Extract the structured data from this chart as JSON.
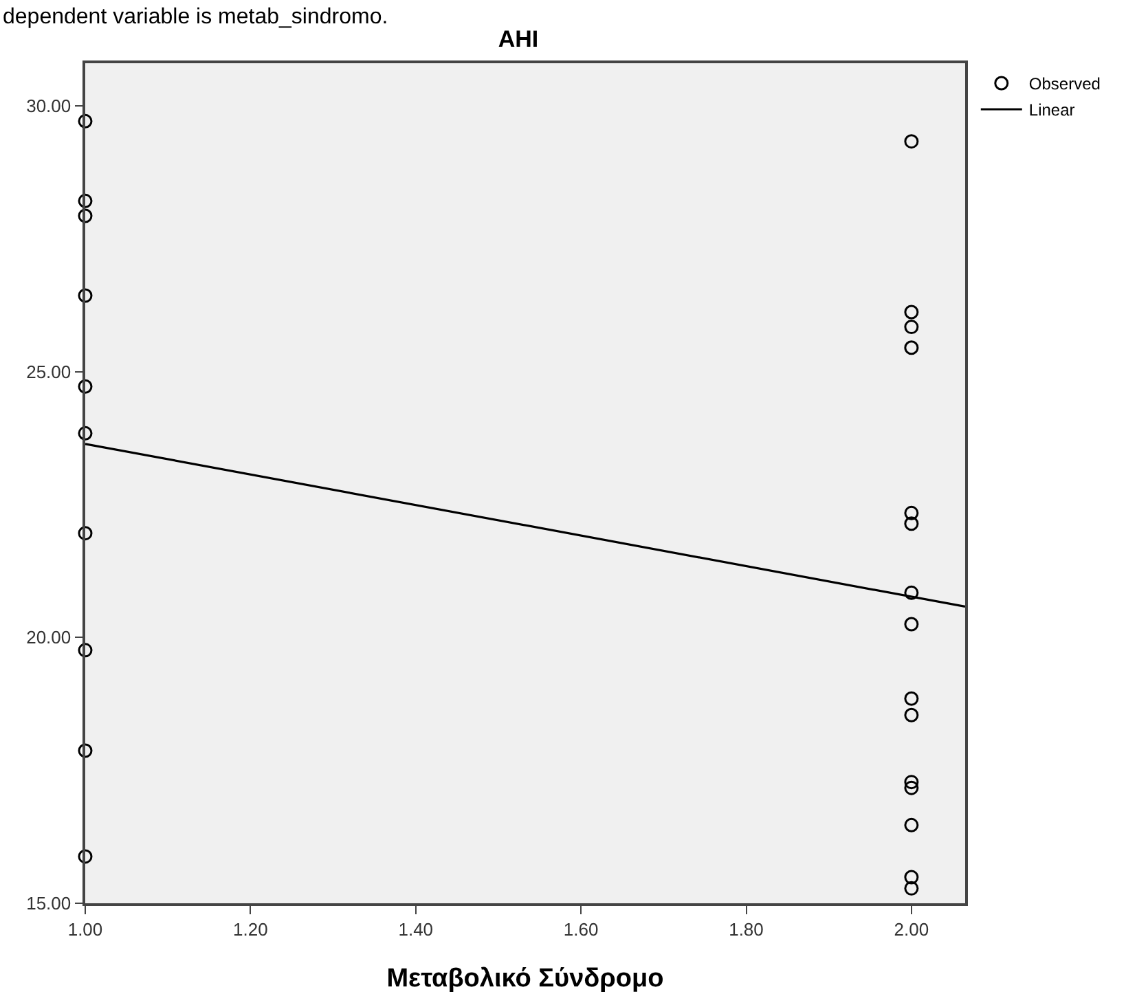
{
  "chart_data": {
    "type": "scatter",
    "title": "AHI",
    "xlabel": "Μεταβολικό Σύνδρομο",
    "annotations": [
      "dependent variable is metab_sindromo."
    ],
    "xlim": [
      1.0,
      2.065
    ],
    "ylim": [
      15.0,
      30.8
    ],
    "xticks": [
      {
        "value": 1.0,
        "label": "1.00"
      },
      {
        "value": 1.2,
        "label": "1.20"
      },
      {
        "value": 1.4,
        "label": "1.40"
      },
      {
        "value": 1.6,
        "label": "1.60"
      },
      {
        "value": 1.8,
        "label": "1.80"
      },
      {
        "value": 2.0,
        "label": "2.00"
      }
    ],
    "yticks": [
      {
        "value": 15,
        "label": "15.00"
      },
      {
        "value": 20,
        "label": "20.00"
      },
      {
        "value": 25,
        "label": "25.00"
      },
      {
        "value": 30,
        "label": "30.00"
      }
    ],
    "grid": false,
    "legend": "top right",
    "series": [
      {
        "name": "Observed",
        "type": "scatter",
        "color": "#000000",
        "marker": "circle",
        "x": [
          1,
          1,
          1,
          1,
          1,
          1,
          1,
          1,
          1,
          1,
          2,
          2,
          2,
          2,
          2,
          2,
          2,
          2,
          2,
          2,
          2,
          2,
          2,
          2,
          2
        ],
        "values": [
          29.71,
          28.21,
          27.93,
          26.43,
          24.72,
          23.84,
          21.96,
          19.76,
          17.87,
          15.88,
          29.33,
          26.12,
          25.84,
          25.45,
          22.34,
          22.14,
          20.84,
          20.25,
          18.85,
          18.54,
          17.28,
          17.17,
          16.47,
          15.49,
          15.28
        ]
      },
      {
        "name": "Linear",
        "type": "line",
        "color": "#000000",
        "marker": "none",
        "line_style": "solid",
        "x": [
          1.0,
          2.065
        ],
        "values": [
          23.64,
          20.58
        ]
      }
    ]
  }
}
